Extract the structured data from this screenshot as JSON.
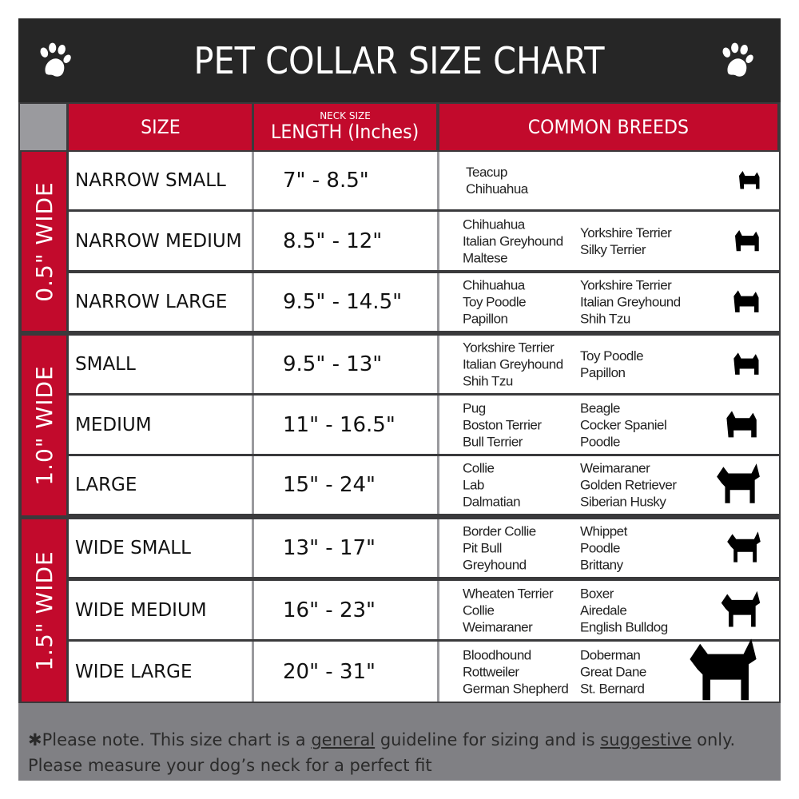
{
  "title": "PET COLLAR SIZE CHART",
  "headers": {
    "size": "SIZE",
    "neck_size": "NECK SIZE",
    "length": "LENGTH (Inches)",
    "breeds": "COMMON BREEDS"
  },
  "colors": {
    "accent_red": "#c20a2c",
    "title_bg": "#262626",
    "footer_bg": "#808084"
  },
  "groups": [
    {
      "label": "0.5\" WIDE",
      "rows": [
        {
          "size": "NARROW SMALL",
          "length": "7\" - 8.5\"",
          "col1": "Teacup\nChihuahua",
          "col2": "",
          "icon": "yorkie-silhouette-icon"
        },
        {
          "size": "NARROW MEDIUM",
          "length": "8.5\" - 12\"",
          "col1": "Chihuahua\nItalian Greyhound\nMaltese",
          "col2": "Yorkshire Terrier\nSilky Terrier",
          "icon": "chihuahua-silhouette-icon"
        },
        {
          "size": "NARROW LARGE",
          "length": "9.5\" - 14.5\"",
          "col1": "Chihuahua\nToy Poodle\nPapillon",
          "col2": "Yorkshire Terrier\nItalian Greyhound\nShih Tzu",
          "icon": "pomeranian-silhouette-icon"
        }
      ]
    },
    {
      "label": "1.0\" WIDE",
      "rows": [
        {
          "size": "SMALL",
          "length": "9.5\" - 13\"",
          "col1": "Yorkshire Terrier\nItalian Greyhound\nShih Tzu",
          "col2": "Toy Poodle\nPapillon",
          "icon": "pomeranian-silhouette-icon"
        },
        {
          "size": "MEDIUM",
          "length": "11\" - 16.5\"",
          "col1": "Pug\nBoston Terrier\nBull Terrier",
          "col2": "Beagle\nCocker Spaniel\nPoodle",
          "icon": "dachshund-silhouette-icon"
        },
        {
          "size": "LARGE",
          "length": "15\" - 24\"",
          "col1": "Collie\nLab\nDalmatian",
          "col2": "Weimaraner\nGolden Retriever\nSiberian Husky",
          "icon": "shepherd-silhouette-icon"
        }
      ]
    },
    {
      "label": "1.5\" WIDE",
      "rows": [
        {
          "size": "WIDE SMALL",
          "length": "13\" - 17\"",
          "col1": "Border Collie\nPit Bull\nGreyhound",
          "col2": "Whippet\nPoodle\nBrittany",
          "icon": "bulldog-silhouette-icon"
        },
        {
          "size": "WIDE MEDIUM",
          "length": "16\" - 23\"",
          "col1": "Wheaten Terrier\nCollie\nWeimaraner",
          "col2": "Boxer\nAiredale\nEnglish Bulldog",
          "icon": "pitbull-silhouette-icon"
        },
        {
          "size": "WIDE LARGE",
          "length": "20\" - 31\"",
          "col1": "Bloodhound\nRottweiler\nGerman Shepherd",
          "col2": "Doberman\nGreat Dane\nSt. Bernard",
          "icon": "doberman-silhouette-icon"
        }
      ]
    }
  ],
  "footer": {
    "prefix": "✱Please note. This size chart is a ",
    "general": "general",
    "mid": " guideline for sizing and is ",
    "suggestive": "suggestive",
    "suffix": " only.",
    "line2": "Please measure your dog’s neck for a perfect fit"
  }
}
